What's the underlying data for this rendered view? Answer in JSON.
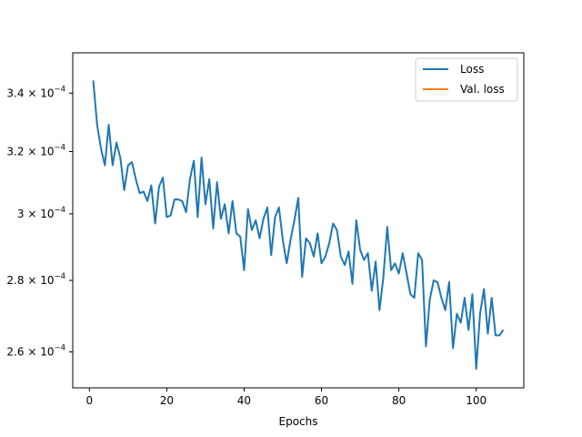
{
  "chart_data": {
    "type": "line",
    "xlabel": "Epochs",
    "ylabel": "",
    "yscale": "log",
    "xlim": [
      -4.3,
      112.3
    ],
    "ylim": [
      0.0002505,
      0.0003545
    ],
    "grid": false,
    "legend_position": "top-right",
    "x_ticks": [
      {
        "value": 0,
        "label": "0"
      },
      {
        "value": 20,
        "label": "20"
      },
      {
        "value": 40,
        "label": "40"
      },
      {
        "value": 60,
        "label": "60"
      },
      {
        "value": 80,
        "label": "80"
      },
      {
        "value": 100,
        "label": "100"
      }
    ],
    "y_ticks": [
      {
        "value": 0.00026,
        "base": "2.6",
        "exp": "−4"
      },
      {
        "value": 0.00028,
        "base": "2.8",
        "exp": "−4"
      },
      {
        "value": 0.0003,
        "base": "3",
        "exp": "−4"
      },
      {
        "value": 0.00032,
        "base": "3.2",
        "exp": "−4"
      },
      {
        "value": 0.00034,
        "base": "3.4",
        "exp": "−4"
      }
    ],
    "series": [
      {
        "name": "Loss",
        "color": "#1f77b4",
        "x": [
          1,
          2,
          3,
          4,
          5,
          6,
          7,
          8,
          9,
          10,
          11,
          12,
          13,
          14,
          15,
          16,
          17,
          18,
          19,
          20,
          21,
          22,
          23,
          24,
          25,
          26,
          27,
          28,
          29,
          30,
          31,
          32,
          33,
          34,
          35,
          36,
          37,
          38,
          39,
          40,
          41,
          42,
          43,
          44,
          45,
          46,
          47,
          48,
          49,
          50,
          51,
          52,
          53,
          54,
          55,
          56,
          57,
          58,
          59,
          60,
          61,
          62,
          63,
          64,
          65,
          66,
          67,
          68,
          69,
          70,
          71,
          72,
          73,
          74,
          75,
          76,
          77,
          78,
          79,
          80,
          81,
          82,
          83,
          84,
          85,
          86,
          87,
          88,
          89,
          90,
          91,
          92,
          93,
          94,
          95,
          96,
          97,
          98,
          99,
          100,
          101,
          102,
          103,
          104,
          105,
          106,
          107
        ],
        "values": [
          0.0003445,
          0.000329,
          0.000321,
          0.0003155,
          0.000329,
          0.0003155,
          0.000323,
          0.000318,
          0.0003075,
          0.0003155,
          0.0003165,
          0.000311,
          0.0003065,
          0.000307,
          0.000304,
          0.000309,
          0.000297,
          0.0003085,
          0.0003115,
          0.000299,
          0.0002995,
          0.0003045,
          0.0003045,
          0.000304,
          0.0003005,
          0.000311,
          0.000317,
          0.000299,
          0.000318,
          0.000303,
          0.000311,
          0.0002955,
          0.00031,
          0.0002985,
          0.000303,
          0.000294,
          0.000304,
          0.000294,
          0.000293,
          0.000283,
          0.0003015,
          0.000295,
          0.000298,
          0.0002925,
          0.0002985,
          0.000302,
          0.0002875,
          0.000299,
          0.000302,
          0.000292,
          0.000285,
          0.000292,
          0.000298,
          0.000305,
          0.000281,
          0.0002925,
          0.000291,
          0.000287,
          0.000294,
          0.000285,
          0.000287,
          0.000291,
          0.000297,
          0.000295,
          0.000287,
          0.0002845,
          0.0002885,
          0.000279,
          0.000298,
          0.000289,
          0.000286,
          0.000288,
          0.000277,
          0.0002855,
          0.0002715,
          0.000281,
          0.000296,
          0.000283,
          0.000285,
          0.000282,
          0.000288,
          0.000282,
          0.000276,
          0.000275,
          0.000288,
          0.000286,
          0.0002615,
          0.0002745,
          0.00028,
          0.0002795,
          0.000275,
          0.0002715,
          0.0002795,
          0.000261,
          0.0002705,
          0.000268,
          0.000275,
          0.000266,
          0.000276,
          0.0002555,
          0.0002705,
          0.0002775,
          0.000265,
          0.000275,
          0.0002645,
          0.0002645,
          0.000266
        ]
      },
      {
        "name": "Val. loss",
        "color": "#ff7f0e",
        "x": [],
        "values": []
      }
    ]
  }
}
